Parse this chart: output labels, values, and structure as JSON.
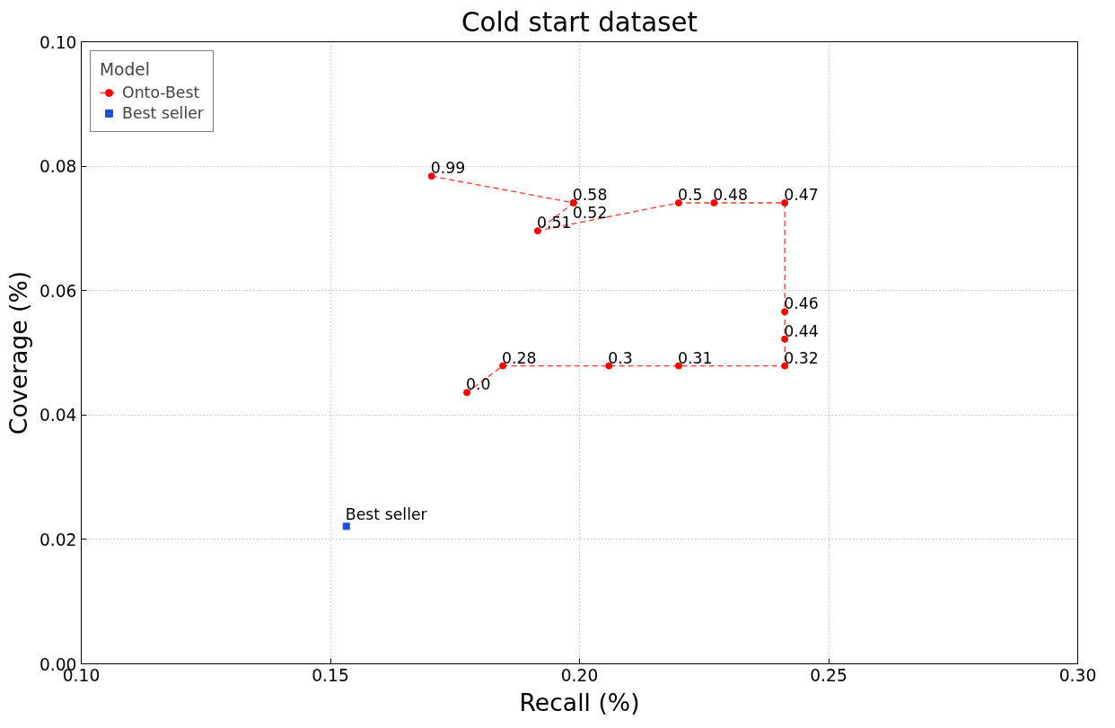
{
  "chart_data": {
    "type": "line",
    "title": "Cold start dataset",
    "xlabel": "Recall (%)",
    "ylabel": "Coverage (%)",
    "legend_title": "Model",
    "legend": "top left",
    "grid": true,
    "xlim": [
      0.1,
      0.3
    ],
    "xticks": [
      {
        "value": 0.1,
        "label": "0.10"
      },
      {
        "value": 0.15,
        "label": "0.15"
      },
      {
        "value": 0.2,
        "label": "0.20"
      },
      {
        "value": 0.25,
        "label": "0.25"
      },
      {
        "value": 0.3,
        "label": "0.30"
      }
    ],
    "ylim": [
      0,
      0.1
    ],
    "yticks": [
      {
        "value": 0,
        "label": "0.00"
      },
      {
        "value": 0.02,
        "label": "0.02"
      },
      {
        "value": 0.04,
        "label": "0.04"
      },
      {
        "value": 0.06,
        "label": "0.06"
      },
      {
        "value": 0.08,
        "label": "0.08"
      },
      {
        "value": 0.1,
        "label": "0.10"
      }
    ],
    "series": [
      {
        "name": "Onto-Best",
        "color": "#ff0000",
        "marker": "circle",
        "line_style": "dashed",
        "x": [
          0.1703,
          0.1988,
          0.1988,
          0.1916,
          0.2199,
          0.227,
          0.2412,
          0.2412,
          0.2412,
          0.2412,
          0.2199,
          0.2059,
          0.1846,
          0.1774
        ],
        "values": [
          0.0784,
          0.0741,
          0.0741,
          0.0696,
          0.0741,
          0.0741,
          0.0741,
          0.0566,
          0.0522,
          0.0479,
          0.0479,
          0.0479,
          0.0479,
          0.0436
        ]
      },
      {
        "name": "Best seller",
        "type": "scatter",
        "color": "#1f4fd6",
        "marker": "square",
        "x": [
          0.1532
        ],
        "values": [
          0.0221
        ]
      }
    ],
    "annotations": [
      {
        "text": "0.99",
        "x": 0.1703,
        "y": 0.0784
      },
      {
        "text": "0.58",
        "x": 0.1988,
        "y": 0.0741
      },
      {
        "text": "0.52",
        "x": 0.1988,
        "y": 0.0741
      },
      {
        "text": "0.51",
        "x": 0.1916,
        "y": 0.0696
      },
      {
        "text": "0.5",
        "x": 0.2199,
        "y": 0.0741
      },
      {
        "text": "0.48",
        "x": 0.227,
        "y": 0.0741
      },
      {
        "text": "0.47",
        "x": 0.2412,
        "y": 0.0741
      },
      {
        "text": "0.46",
        "x": 0.2412,
        "y": 0.0566
      },
      {
        "text": "0.44",
        "x": 0.2412,
        "y": 0.0522
      },
      {
        "text": "0.32",
        "x": 0.2412,
        "y": 0.0479
      },
      {
        "text": "0.31",
        "x": 0.2199,
        "y": 0.0479
      },
      {
        "text": "0.3",
        "x": 0.2059,
        "y": 0.0479
      },
      {
        "text": "0.28",
        "x": 0.1846,
        "y": 0.0479
      },
      {
        "text": "0.0",
        "x": 0.1774,
        "y": 0.0436
      },
      {
        "text": "Best seller",
        "x": 0.1532,
        "y": 0.0221
      }
    ]
  }
}
